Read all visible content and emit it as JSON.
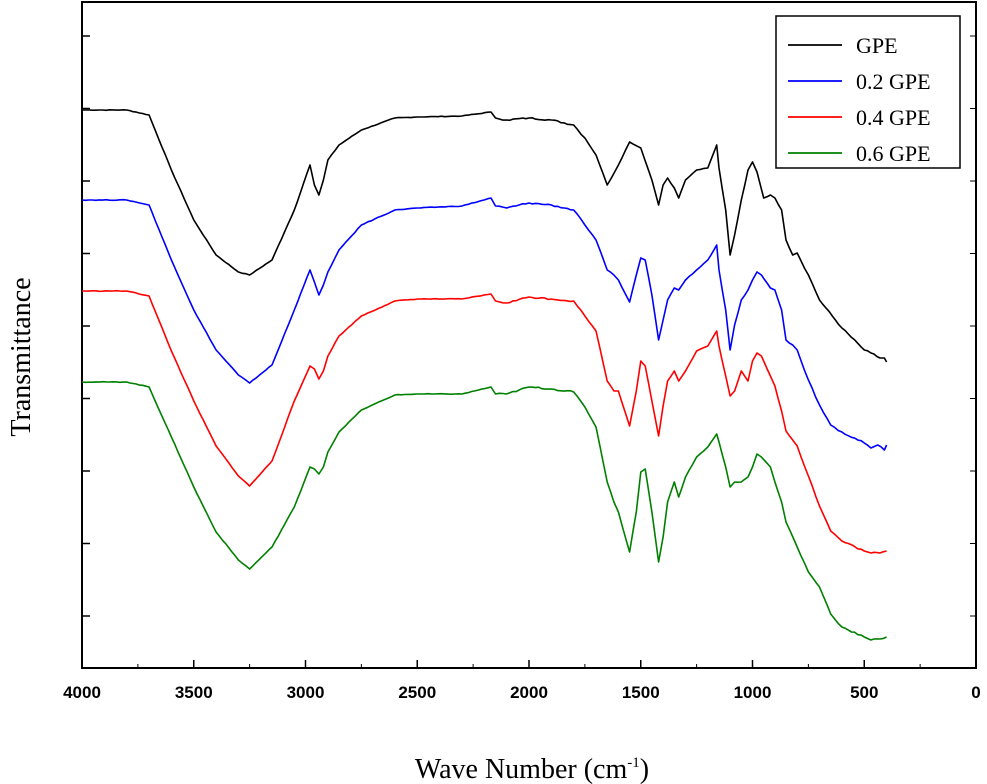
{
  "chart_data": {
    "type": "line",
    "title": "",
    "xlabel": "Wave Number (cm",
    "xlabel_sup": "-1",
    "xlabel_close": ")",
    "ylabel": "Transmittance",
    "xlim": [
      4000,
      0
    ],
    "x_ticks": [
      "4000",
      "3500",
      "3000",
      "2500",
      "2000",
      "1500",
      "1000",
      "500",
      "0"
    ],
    "y_tick_labels_shown": false,
    "grid": false,
    "legend_position": "top-right",
    "series": [
      {
        "name": "GPE",
        "color": "#000000",
        "offset": 0,
        "points": [
          [
            4000,
            0
          ],
          [
            3800,
            0
          ],
          [
            3700,
            -5
          ],
          [
            3600,
            -60
          ],
          [
            3500,
            -110
          ],
          [
            3400,
            -145
          ],
          [
            3300,
            -162
          ],
          [
            3250,
            -165
          ],
          [
            3150,
            -150
          ],
          [
            3050,
            -100
          ],
          [
            2980,
            -55
          ],
          [
            2960,
            -75
          ],
          [
            2940,
            -85
          ],
          [
            2920,
            -70
          ],
          [
            2900,
            -50
          ],
          [
            2850,
            -35
          ],
          [
            2750,
            -20
          ],
          [
            2600,
            -8
          ],
          [
            2500,
            -7
          ],
          [
            2300,
            -6
          ],
          [
            2170,
            -2
          ],
          [
            2150,
            -8
          ],
          [
            2100,
            -10
          ],
          [
            2000,
            -8
          ],
          [
            1900,
            -10
          ],
          [
            1800,
            -15
          ],
          [
            1750,
            -28
          ],
          [
            1700,
            -45
          ],
          [
            1650,
            -75
          ],
          [
            1600,
            -55
          ],
          [
            1550,
            -32
          ],
          [
            1500,
            -38
          ],
          [
            1450,
            -70
          ],
          [
            1420,
            -95
          ],
          [
            1400,
            -75
          ],
          [
            1380,
            -68
          ],
          [
            1350,
            -78
          ],
          [
            1330,
            -88
          ],
          [
            1300,
            -70
          ],
          [
            1250,
            -60
          ],
          [
            1200,
            -58
          ],
          [
            1160,
            -35
          ],
          [
            1150,
            -58
          ],
          [
            1120,
            -100
          ],
          [
            1100,
            -145
          ],
          [
            1080,
            -125
          ],
          [
            1050,
            -90
          ],
          [
            1020,
            -60
          ],
          [
            1000,
            -52
          ],
          [
            980,
            -62
          ],
          [
            950,
            -88
          ],
          [
            920,
            -85
          ],
          [
            900,
            -88
          ],
          [
            870,
            -100
          ],
          [
            850,
            -130
          ],
          [
            820,
            -145
          ],
          [
            800,
            -143
          ],
          [
            750,
            -165
          ],
          [
            700,
            -190
          ],
          [
            600,
            -218
          ],
          [
            500,
            -240
          ],
          [
            470,
            -243
          ],
          [
            430,
            -248
          ],
          [
            410,
            -248
          ],
          [
            400,
            -252
          ]
        ]
      },
      {
        "name": "0.2 GPE",
        "color": "#0000ff",
        "offset": 90,
        "points": [
          [
            4000,
            0
          ],
          [
            3800,
            0
          ],
          [
            3700,
            -5
          ],
          [
            3600,
            -60
          ],
          [
            3500,
            -110
          ],
          [
            3400,
            -150
          ],
          [
            3300,
            -175
          ],
          [
            3250,
            -183
          ],
          [
            3150,
            -165
          ],
          [
            3050,
            -110
          ],
          [
            2980,
            -70
          ],
          [
            2960,
            -82
          ],
          [
            2940,
            -95
          ],
          [
            2920,
            -85
          ],
          [
            2900,
            -72
          ],
          [
            2850,
            -50
          ],
          [
            2750,
            -25
          ],
          [
            2600,
            -10
          ],
          [
            2500,
            -8
          ],
          [
            2300,
            -6
          ],
          [
            2170,
            2
          ],
          [
            2150,
            -6
          ],
          [
            2100,
            -8
          ],
          [
            2000,
            -3
          ],
          [
            1900,
            -5
          ],
          [
            1800,
            -10
          ],
          [
            1750,
            -25
          ],
          [
            1700,
            -40
          ],
          [
            1650,
            -70
          ],
          [
            1620,
            -75
          ],
          [
            1600,
            -80
          ],
          [
            1550,
            -102
          ],
          [
            1520,
            -75
          ],
          [
            1500,
            -58
          ],
          [
            1480,
            -60
          ],
          [
            1450,
            -95
          ],
          [
            1420,
            -140
          ],
          [
            1400,
            -120
          ],
          [
            1380,
            -100
          ],
          [
            1350,
            -88
          ],
          [
            1330,
            -90
          ],
          [
            1300,
            -80
          ],
          [
            1250,
            -70
          ],
          [
            1200,
            -60
          ],
          [
            1160,
            -45
          ],
          [
            1150,
            -70
          ],
          [
            1120,
            -110
          ],
          [
            1100,
            -150
          ],
          [
            1080,
            -125
          ],
          [
            1050,
            -100
          ],
          [
            1020,
            -90
          ],
          [
            1000,
            -80
          ],
          [
            980,
            -72
          ],
          [
            960,
            -75
          ],
          [
            920,
            -88
          ],
          [
            900,
            -90
          ],
          [
            870,
            -110
          ],
          [
            850,
            -140
          ],
          [
            820,
            -145
          ],
          [
            800,
            -150
          ],
          [
            750,
            -180
          ],
          [
            700,
            -205
          ],
          [
            650,
            -225
          ],
          [
            600,
            -232
          ],
          [
            500,
            -243
          ],
          [
            470,
            -248
          ],
          [
            440,
            -245
          ],
          [
            410,
            -250
          ],
          [
            400,
            -245
          ]
        ]
      },
      {
        "name": "0.4 GPE",
        "color": "#ff0000",
        "offset": 181,
        "points": [
          [
            4000,
            0
          ],
          [
            3800,
            0
          ],
          [
            3700,
            -5
          ],
          [
            3600,
            -60
          ],
          [
            3500,
            -110
          ],
          [
            3400,
            -155
          ],
          [
            3300,
            -185
          ],
          [
            3250,
            -195
          ],
          [
            3150,
            -170
          ],
          [
            3050,
            -110
          ],
          [
            2980,
            -75
          ],
          [
            2960,
            -78
          ],
          [
            2940,
            -88
          ],
          [
            2920,
            -80
          ],
          [
            2900,
            -65
          ],
          [
            2850,
            -45
          ],
          [
            2750,
            -25
          ],
          [
            2600,
            -10
          ],
          [
            2500,
            -8
          ],
          [
            2300,
            -8
          ],
          [
            2170,
            -3
          ],
          [
            2150,
            -10
          ],
          [
            2100,
            -12
          ],
          [
            2000,
            -6
          ],
          [
            1900,
            -8
          ],
          [
            1800,
            -10
          ],
          [
            1750,
            -25
          ],
          [
            1700,
            -40
          ],
          [
            1650,
            -90
          ],
          [
            1620,
            -100
          ],
          [
            1600,
            -100
          ],
          [
            1550,
            -135
          ],
          [
            1520,
            -100
          ],
          [
            1500,
            -70
          ],
          [
            1480,
            -75
          ],
          [
            1450,
            -110
          ],
          [
            1420,
            -145
          ],
          [
            1400,
            -115
          ],
          [
            1380,
            -90
          ],
          [
            1350,
            -80
          ],
          [
            1330,
            -90
          ],
          [
            1300,
            -80
          ],
          [
            1250,
            -60
          ],
          [
            1200,
            -55
          ],
          [
            1160,
            -40
          ],
          [
            1150,
            -55
          ],
          [
            1120,
            -85
          ],
          [
            1100,
            -105
          ],
          [
            1080,
            -100
          ],
          [
            1050,
            -80
          ],
          [
            1020,
            -90
          ],
          [
            1000,
            -70
          ],
          [
            980,
            -62
          ],
          [
            960,
            -65
          ],
          [
            920,
            -85
          ],
          [
            900,
            -95
          ],
          [
            870,
            -120
          ],
          [
            850,
            -140
          ],
          [
            800,
            -155
          ],
          [
            750,
            -185
          ],
          [
            700,
            -215
          ],
          [
            650,
            -240
          ],
          [
            600,
            -250
          ],
          [
            500,
            -260
          ],
          [
            470,
            -262
          ],
          [
            430,
            -262
          ],
          [
            400,
            -260
          ]
        ]
      },
      {
        "name": "0.6 GPE",
        "color": "#008000",
        "offset": 272,
        "points": [
          [
            4000,
            0
          ],
          [
            3800,
            0
          ],
          [
            3700,
            -5
          ],
          [
            3600,
            -55
          ],
          [
            3500,
            -105
          ],
          [
            3400,
            -150
          ],
          [
            3300,
            -178
          ],
          [
            3250,
            -187
          ],
          [
            3150,
            -165
          ],
          [
            3050,
            -125
          ],
          [
            2980,
            -85
          ],
          [
            2960,
            -87
          ],
          [
            2940,
            -92
          ],
          [
            2920,
            -85
          ],
          [
            2900,
            -70
          ],
          [
            2850,
            -50
          ],
          [
            2750,
            -28
          ],
          [
            2600,
            -13
          ],
          [
            2500,
            -12
          ],
          [
            2300,
            -12
          ],
          [
            2170,
            -5
          ],
          [
            2150,
            -12
          ],
          [
            2100,
            -12
          ],
          [
            2000,
            -5
          ],
          [
            1900,
            -7
          ],
          [
            1800,
            -10
          ],
          [
            1750,
            -25
          ],
          [
            1700,
            -45
          ],
          [
            1650,
            -100
          ],
          [
            1620,
            -120
          ],
          [
            1600,
            -130
          ],
          [
            1550,
            -170
          ],
          [
            1520,
            -130
          ],
          [
            1500,
            -90
          ],
          [
            1480,
            -87
          ],
          [
            1450,
            -130
          ],
          [
            1420,
            -180
          ],
          [
            1400,
            -155
          ],
          [
            1380,
            -120
          ],
          [
            1350,
            -100
          ],
          [
            1330,
            -115
          ],
          [
            1300,
            -95
          ],
          [
            1250,
            -75
          ],
          [
            1200,
            -65
          ],
          [
            1160,
            -52
          ],
          [
            1150,
            -60
          ],
          [
            1120,
            -85
          ],
          [
            1100,
            -105
          ],
          [
            1080,
            -100
          ],
          [
            1050,
            -100
          ],
          [
            1020,
            -95
          ],
          [
            1000,
            -85
          ],
          [
            980,
            -72
          ],
          [
            960,
            -75
          ],
          [
            920,
            -85
          ],
          [
            900,
            -100
          ],
          [
            870,
            -120
          ],
          [
            850,
            -140
          ],
          [
            800,
            -165
          ],
          [
            750,
            -190
          ],
          [
            700,
            -205
          ],
          [
            650,
            -232
          ],
          [
            600,
            -245
          ],
          [
            500,
            -255
          ],
          [
            470,
            -258
          ],
          [
            430,
            -257
          ],
          [
            400,
            -255
          ]
        ]
      }
    ]
  }
}
